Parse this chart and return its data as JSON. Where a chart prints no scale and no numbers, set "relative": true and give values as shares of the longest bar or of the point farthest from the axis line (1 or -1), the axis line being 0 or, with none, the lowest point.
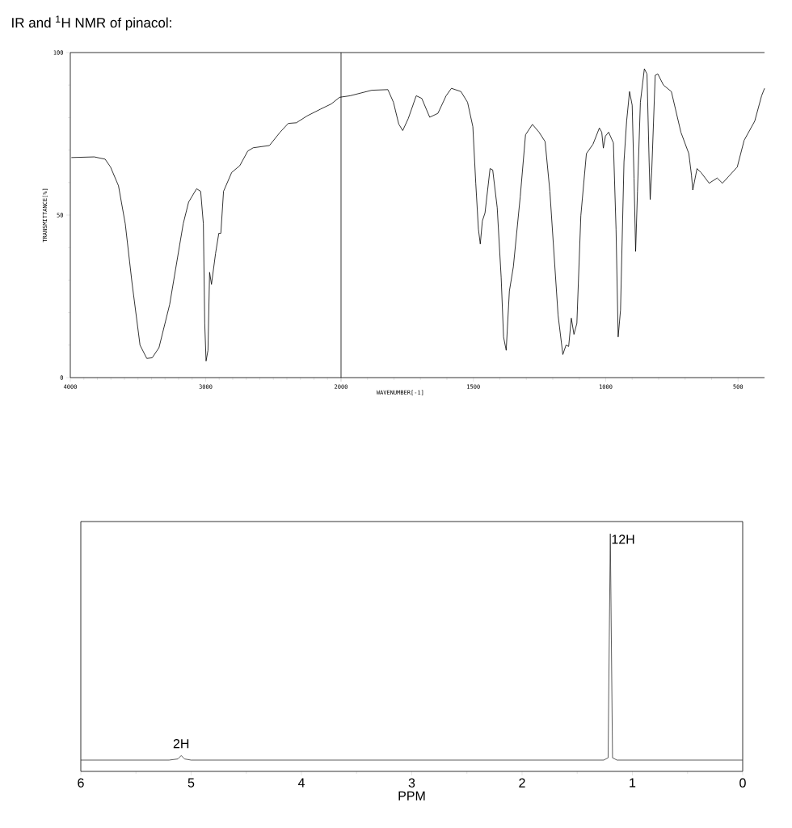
{
  "chart_data": [
    {
      "type": "line",
      "title": "IR and $^{1}$H NMR of pinacol:",
      "ylabel": "TRANSMITTANCE[%]",
      "x": [
        3992,
        3823,
        3743,
        3703,
        3644,
        3594,
        3544,
        3485,
        3435,
        3395,
        3345,
        3266,
        3166,
        3126,
        3067,
        3037,
        3017,
        3007,
        2997,
        2983,
        2971,
        2957,
        2927,
        2903,
        2888,
        2868,
        2808,
        2748,
        2689,
        2649,
        2529,
        2450,
        2390,
        2330,
        2251,
        2151,
        2072,
        2012,
        2000
      ],
      "series": [
        {
          "color": "#000000",
          "values": [
            67.7,
            67.9,
            67.2,
            64.8,
            59,
            47.3,
            29.1,
            10,
            5.9,
            6.1,
            9.2,
            22.5,
            47.3,
            54,
            58.1,
            57.3,
            47.3,
            16.7,
            5.1,
            8.4,
            32.4,
            28.7,
            38.2,
            44.4,
            44.4,
            57.3,
            63.1,
            65.2,
            69.7,
            70.7,
            71.4,
            75.5,
            78.2,
            78.4,
            80.5,
            82.6,
            84.2,
            86.2,
            86.3
          ]
        }
      ],
      "xlim": [
        4000,
        2000
      ],
      "ylim": [
        0,
        100
      ],
      "xticks": [
        4000,
        3000,
        2000
      ],
      "yticks": [
        0,
        50,
        100
      ]
    },
    {
      "type": "line",
      "xlabel": "WAVENUMBER[-1]",
      "tick_labels": "x",
      "x": [
        2000,
        1966,
        1884,
        1823,
        1802,
        1782,
        1767,
        1746,
        1716,
        1695,
        1665,
        1634,
        1603,
        1583,
        1547,
        1522,
        1502,
        1491,
        1481,
        1474,
        1466,
        1456,
        1437,
        1427,
        1410,
        1395,
        1386,
        1376,
        1364,
        1349,
        1323,
        1303,
        1277,
        1252,
        1229,
        1211,
        1180,
        1162,
        1150,
        1140,
        1130,
        1120,
        1109,
        1094,
        1073,
        1048,
        1024,
        1015,
        1009,
        1001,
        989,
        971,
        961,
        953,
        944,
        931,
        921,
        910,
        900,
        893,
        887,
        880,
        869,
        854,
        844,
        836,
        832,
        826,
        813,
        803,
        782,
        752,
        716,
        686,
        676,
        671,
        655,
        640,
        609,
        579,
        559,
        503,
        477,
        437,
        411,
        400
      ],
      "series": [
        {
          "color": "#000000",
          "values": [
            86.3,
            86.7,
            88.4,
            88.6,
            84.7,
            78,
            76,
            79.7,
            86.7,
            85.9,
            80.1,
            81.3,
            86.7,
            89,
            88,
            84.7,
            77.2,
            59.8,
            45.7,
            41.1,
            48.2,
            50.7,
            64.3,
            63.9,
            52.3,
            30.8,
            12.5,
            8.4,
            26.6,
            34.1,
            55.6,
            74.7,
            77.9,
            75.5,
            72.6,
            57.3,
            19.2,
            7.1,
            10,
            9.6,
            18.3,
            13.3,
            16.7,
            49.8,
            68.9,
            71.8,
            76.8,
            75.5,
            70.6,
            74.3,
            75.5,
            72.2,
            45.7,
            12.5,
            20.8,
            66.4,
            78.9,
            88,
            83.8,
            61.4,
            38.8,
            57.3,
            84.7,
            95,
            93.4,
            66.4,
            54.8,
            63.9,
            93,
            93.4,
            90,
            88,
            75.5,
            68.9,
            62.3,
            57.7,
            64.3,
            63.1,
            59.8,
            61.4,
            59.8,
            64.8,
            73,
            78.9,
            86.7,
            89
          ]
        }
      ],
      "xlim": [
        2000,
        400
      ],
      "ylim": [
        0,
        100
      ],
      "xticks": [
        {
          "value": 2000,
          "label": null
        },
        1500,
        1000,
        500
      ]
    },
    {
      "type": "line",
      "xlabel": "PPM",
      "relative": true,
      "tick_labels": "x",
      "x": [
        6,
        5.2,
        5.12,
        5.09,
        5.06,
        5.0,
        1.26,
        1.22,
        1.2,
        1.18,
        1.14,
        0
      ],
      "series": [
        {
          "color": "#333333",
          "values": [
            0,
            0,
            0.005,
            0.02,
            0.005,
            0,
            0,
            0.01,
            1,
            0.01,
            0,
            0
          ]
        }
      ],
      "xlim": [
        6,
        0
      ],
      "xticks": [
        6,
        5,
        4,
        3,
        2,
        1,
        0
      ],
      "annotations": [
        {
          "text": "2H",
          "x": 5.09,
          "y": 0.02
        },
        {
          "text": "12H",
          "x": 1.2,
          "y": 1
        }
      ]
    }
  ]
}
